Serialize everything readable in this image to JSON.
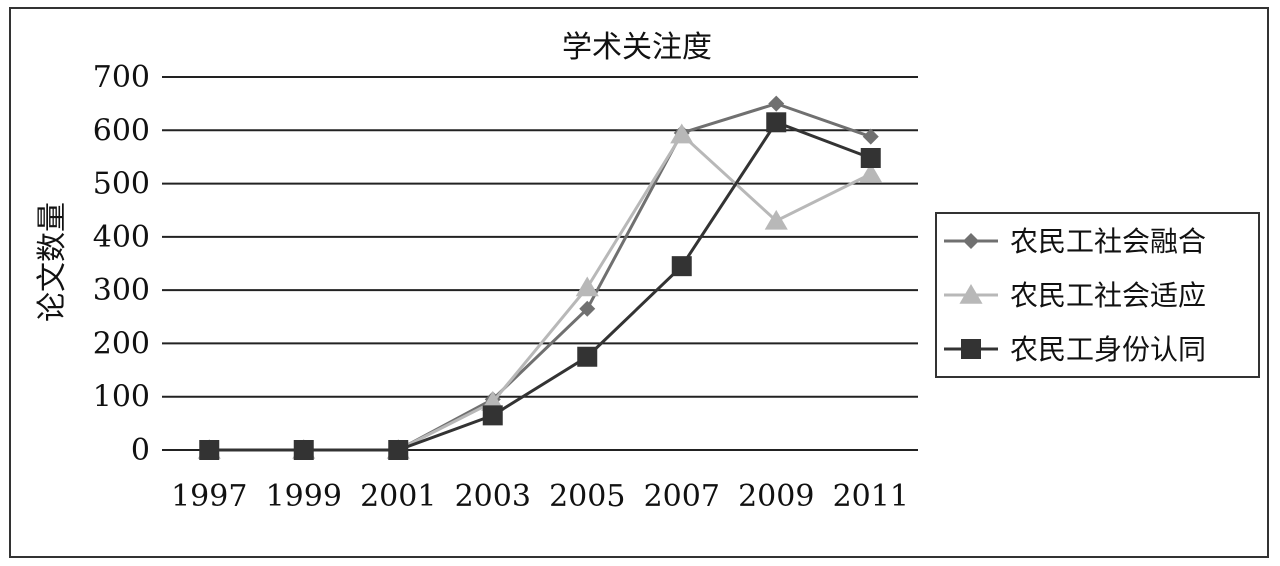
{
  "chart_data": {
    "type": "line",
    "title": "学术关注度",
    "xlabel": "",
    "ylabel": "论文数量",
    "categories": [
      "1997",
      "1999",
      "2001",
      "2003",
      "2005",
      "2007",
      "2009",
      "2011"
    ],
    "ylim": [
      0,
      700
    ],
    "yticks": [
      "0",
      "100",
      "200",
      "300",
      "400",
      "500",
      "600",
      "700"
    ],
    "grid": true,
    "legend_position": "right",
    "series": [
      {
        "name": "农民工社会融合",
        "values": [
          0,
          0,
          0,
          95,
          265,
          595,
          650,
          588
        ],
        "color": "#707070",
        "marker": "diamond"
      },
      {
        "name": "农民工社会适应",
        "values": [
          0,
          0,
          0,
          90,
          305,
          592,
          430,
          518
        ],
        "color": "#b8b8b8",
        "marker": "triangle"
      },
      {
        "name": "农民工身份认同",
        "values": [
          0,
          0,
          0,
          65,
          175,
          345,
          615,
          548
        ],
        "color": "#333333",
        "marker": "square"
      }
    ]
  }
}
